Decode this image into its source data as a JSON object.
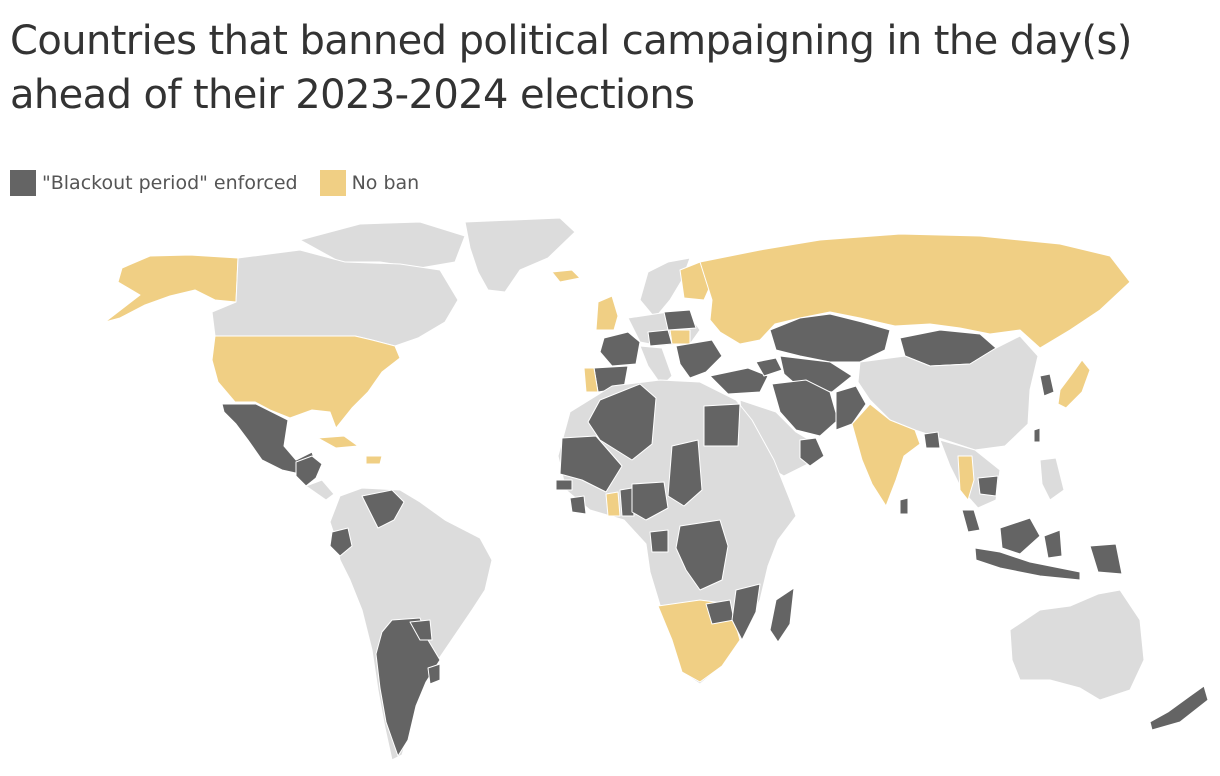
{
  "title": "Countries that banned political campaigning in the day(s) ahead of their 2023-2024 elections",
  "legend": [
    {
      "label": "\"Blackout period\" enforced",
      "color": "#646464"
    },
    {
      "label": "No ban",
      "color": "#f0cf84"
    }
  ],
  "colors": {
    "blackout": "#646464",
    "no_ban": "#f0cf84",
    "no_data": "#dcdcdc"
  },
  "map": {
    "type": "choropleth world map",
    "blackout_period_enforced": [
      "Mexico",
      "Guatemala",
      "El Salvador",
      "Honduras",
      "Venezuela",
      "Ecuador",
      "Argentina",
      "Paraguay",
      "Uruguay",
      "France",
      "Spain",
      "Belgium",
      "Switzerland",
      "Austria",
      "Czechia",
      "Poland",
      "Lithuania",
      "Serbia",
      "North Macedonia",
      "Bulgaria",
      "Turkey",
      "Georgia",
      "Azerbaijan",
      "Algeria",
      "Egypt",
      "Mauritania",
      "Mali",
      "Senegal",
      "Sierra Leone",
      "Liberia",
      "Togo",
      "Benin",
      "Nigeria",
      "Chad",
      "Gabon",
      "Democratic Republic of the Congo",
      "Zimbabwe",
      "Mozambique",
      "Madagascar",
      "Eswatini",
      "Iran",
      "Pakistan",
      "Oman",
      "Kazakhstan",
      "Uzbekistan",
      "Turkmenistan",
      "Mongolia",
      "Bangladesh",
      "Sri Lanka",
      "Cambodia",
      "Taiwan",
      "South Korea",
      "Malaysia",
      "Indonesia",
      "Papua New Guinea",
      "Solomon Islands",
      "New Zealand"
    ],
    "no_ban": [
      "United States",
      "Cuba",
      "Dominican Republic",
      "United Kingdom",
      "Portugal",
      "Slovakia",
      "Hungary",
      "Finland",
      "Russia",
      "India",
      "Thailand",
      "Japan",
      "Ghana",
      "Namibia",
      "Botswana",
      "South Africa",
      "Lesotho",
      "Iceland",
      "Croatia"
    ]
  }
}
